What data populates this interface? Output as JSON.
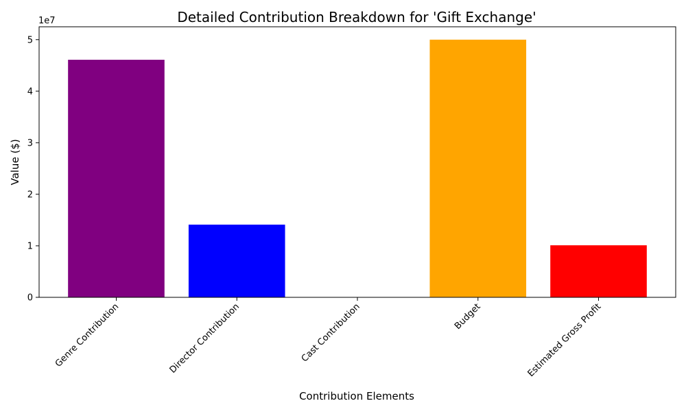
{
  "chart_data": {
    "type": "bar",
    "title": "Detailed Contribution Breakdown for 'Gift Exchange'",
    "xlabel": "Contribution Elements",
    "ylabel": "Value ($)",
    "y_scale_label": "1e7",
    "categories": [
      "Genre Contribution",
      "Director Contribution",
      "Cast Contribution",
      "Budget",
      "Estimated Gross Profit"
    ],
    "values": [
      46100000,
      14100000,
      0,
      50000000,
      10100000
    ],
    "colors": [
      "#800080",
      "#0000ff",
      "#008000",
      "#ffa500",
      "#ff0000"
    ],
    "ylim": [
      0,
      52500000
    ],
    "yticks": [
      0,
      10000000,
      20000000,
      30000000,
      40000000,
      50000000
    ],
    "ytick_labels": [
      "0",
      "1",
      "2",
      "3",
      "4",
      "5"
    ],
    "grid": false,
    "legend": "none"
  }
}
